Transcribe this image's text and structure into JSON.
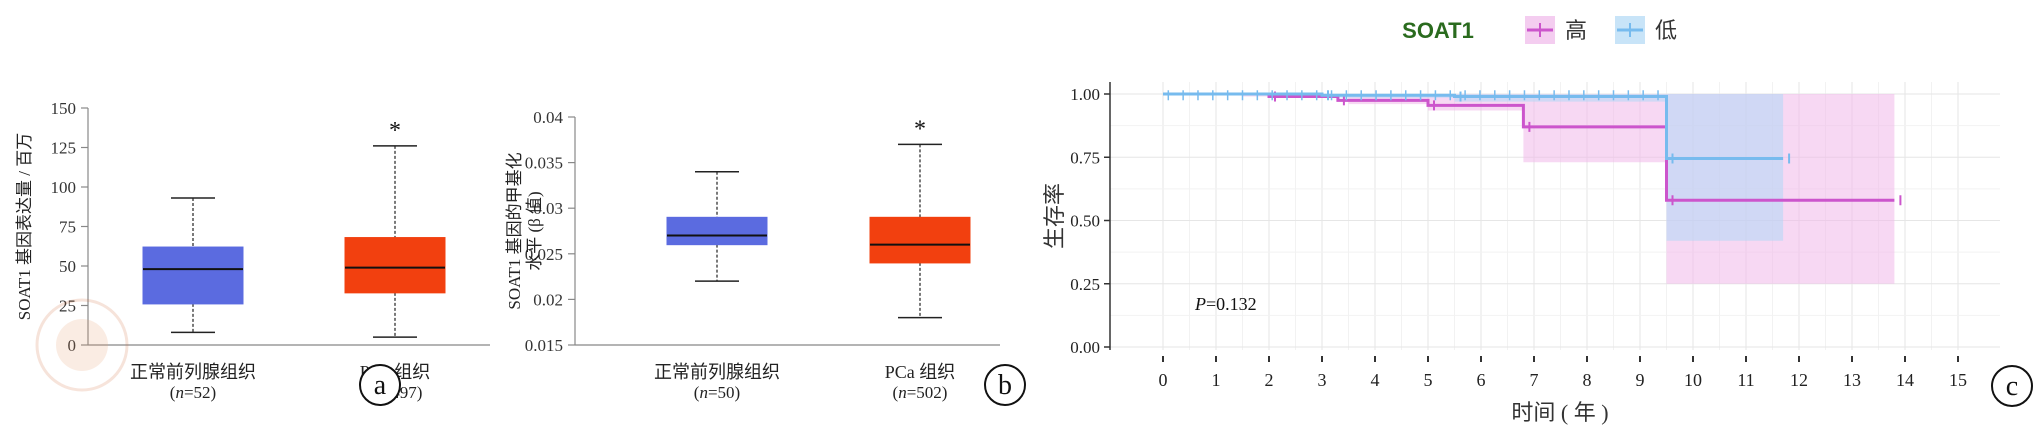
{
  "panels": [
    {
      "type": "box",
      "panel_label": "a",
      "ylabel": "SOAT1 基因表达量 / 百万",
      "ylim": [
        0,
        150
      ],
      "yticks": [
        0,
        25,
        50,
        75,
        100,
        125,
        150
      ],
      "boxes": [
        {
          "label_line1": "正常前列腺组织",
          "n_label": "n",
          "n_value": "=52",
          "color": "#5b6be0",
          "min": 8,
          "q1": 26,
          "median": 48,
          "q3": 62,
          "max": 93,
          "significance": ""
        },
        {
          "label_line1": "PCa 组织",
          "n_label": "n",
          "n_value": "=497",
          "color": "#f2400f",
          "min": 5,
          "q1": 33,
          "median": 49,
          "q3": 68,
          "max": 126,
          "significance": "*"
        }
      ]
    },
    {
      "type": "box",
      "panel_label": "b",
      "ylabel_line1": "SOAT1 基因的甲基化",
      "ylabel_line2": "水平 (β 值)",
      "ylim": [
        0.015,
        0.04
      ],
      "yticks": [
        "0.015",
        "0.02",
        "0.025",
        "0.03",
        "0.035",
        "0.04"
      ],
      "boxes": [
        {
          "label_line1": "正常前列腺组织",
          "n_label": "n",
          "n_value": "=50",
          "color": "#5b6be0",
          "min": 0.022,
          "q1": 0.026,
          "median": 0.027,
          "q3": 0.029,
          "max": 0.034,
          "significance": ""
        },
        {
          "label_line1": "PCa 组织",
          "n_label": "n",
          "n_value": "=502",
          "color": "#f2400f",
          "min": 0.018,
          "q1": 0.024,
          "median": 0.026,
          "q3": 0.029,
          "max": 0.037,
          "significance": "*"
        }
      ]
    }
  ],
  "chart_data": {
    "type": "line",
    "subtype": "kaplan-meier",
    "panel_label": "c",
    "legend_title": "SOAT1",
    "legend_placement": "top-center",
    "xlabel": "时间 ( 年 )",
    "ylabel": "生存率",
    "xlim": [
      0,
      15
    ],
    "ylim": [
      0,
      1
    ],
    "xticks": [
      "0",
      "1",
      "2",
      "3",
      "4",
      "5",
      "6",
      "7",
      "8",
      "9",
      "10",
      "11",
      "12",
      "13",
      "14",
      "15"
    ],
    "yticks": [
      "0.00",
      "0.25",
      "0.50",
      "0.75",
      "1.00"
    ],
    "grid": true,
    "annotation_label": "P",
    "annotation_value": "=0.132",
    "series": [
      {
        "name": "高",
        "color": "#cc55cc",
        "fill": "#f0b8ea",
        "steps": [
          [
            0,
            1.0
          ],
          [
            2.0,
            0.99
          ],
          [
            3.3,
            0.975
          ],
          [
            5.0,
            0.955
          ],
          [
            6.8,
            0.87
          ],
          [
            9.5,
            0.58
          ],
          [
            13.8,
            0.58
          ]
        ],
        "ci_lower": [
          [
            0,
            1.0
          ],
          [
            1.5,
            0.99
          ],
          [
            3.5,
            0.96
          ],
          [
            5.0,
            0.935
          ],
          [
            6.8,
            0.73
          ],
          [
            9.5,
            0.25
          ],
          [
            13.8,
            0.25
          ]
        ],
        "ci_upper": [
          [
            0,
            1.0
          ],
          [
            13.8,
            1.0
          ]
        ]
      },
      {
        "name": "低",
        "color": "#77bbee",
        "fill": "#b0d8f5",
        "steps": [
          [
            0,
            1.0
          ],
          [
            3.0,
            0.995
          ],
          [
            5.5,
            0.99
          ],
          [
            9.5,
            0.745
          ],
          [
            11.7,
            0.745
          ]
        ],
        "ci_lower": [
          [
            0,
            1.0
          ],
          [
            3.0,
            0.985
          ],
          [
            5.5,
            0.97
          ],
          [
            9.5,
            0.42
          ],
          [
            11.7,
            0.42
          ]
        ],
        "ci_upper": [
          [
            0,
            1.0
          ],
          [
            11.7,
            1.0
          ]
        ]
      }
    ]
  }
}
